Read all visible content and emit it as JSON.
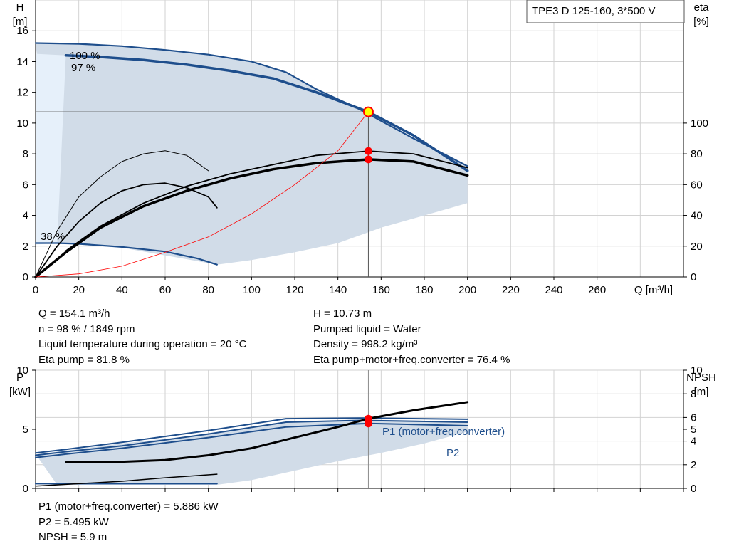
{
  "legend_box": "TPE3 D 125-160, 3*500 V",
  "chart_data": [
    {
      "type": "line",
      "title": "",
      "xlabel": "Q [m³/h]",
      "ylabel": "H\n[m]",
      "y2label": "eta\n[%]",
      "xlim": [
        0,
        300
      ],
      "ylim": [
        0,
        18
      ],
      "y2lim": [
        0,
        180
      ],
      "x_ticks": [
        0,
        20,
        40,
        60,
        80,
        100,
        120,
        140,
        160,
        180,
        200,
        220,
        240,
        260
      ],
      "y_ticks": [
        0,
        2,
        4,
        6,
        8,
        10,
        12,
        14,
        16
      ],
      "y2_ticks": [
        0,
        20,
        40,
        60,
        80,
        100
      ],
      "grid": true,
      "curve_labels": [
        "100 %",
        "97 %",
        "38 %"
      ],
      "operating_region": {
        "upper": [
          [
            0,
            15.2
          ],
          [
            40,
            15.0
          ],
          [
            80,
            14.5
          ],
          [
            100,
            14.0
          ],
          [
            116,
            13.3
          ],
          [
            130,
            12.2
          ],
          [
            150,
            11.0
          ],
          [
            175,
            9.0
          ],
          [
            200,
            7.2
          ]
        ],
        "lower": [
          [
            200,
            4.8
          ],
          [
            180,
            4.0
          ],
          [
            160,
            3.2
          ],
          [
            140,
            2.2
          ],
          [
            120,
            1.6
          ],
          [
            100,
            1.1
          ],
          [
            84,
            0.8
          ],
          [
            60,
            1.4
          ],
          [
            40,
            1.9
          ],
          [
            20,
            2.1
          ],
          [
            10,
            2.2
          ]
        ],
        "color": "#d1dce8"
      },
      "series": [
        {
          "name": "",
          "kind": "H",
          "color": "#1e4e8c",
          "width": 2.2,
          "x": [
            0,
            20,
            40,
            60,
            80,
            100,
            116,
            130,
            150,
            175,
            200
          ],
          "y": [
            15.2,
            15.15,
            15.0,
            14.75,
            14.45,
            14.0,
            13.3,
            12.2,
            10.9,
            9.0,
            7.2
          ]
        },
        {
          "name": "",
          "kind": "H",
          "color": "#1e4e8c",
          "width": 3.5,
          "x": [
            14,
            30,
            50,
            70,
            90,
            110,
            130,
            154.1,
            175,
            200
          ],
          "y": [
            14.4,
            14.3,
            14.1,
            13.8,
            13.4,
            12.9,
            12.0,
            10.73,
            9.2,
            6.9
          ]
        },
        {
          "name": "",
          "kind": "H",
          "color": "#1e4e8c",
          "width": 2.2,
          "x": [
            0,
            10,
            20,
            40,
            60,
            75,
            84
          ],
          "y": [
            2.2,
            2.2,
            2.15,
            1.95,
            1.65,
            1.2,
            0.8
          ]
        },
        {
          "name": "",
          "kind": "eta",
          "color": "#000000",
          "width": 1.0,
          "x": [
            0,
            10,
            20,
            30,
            40,
            50,
            60,
            70,
            80
          ],
          "y": [
            0,
            30,
            52,
            65,
            75,
            80,
            82,
            79,
            69
          ]
        },
        {
          "name": "",
          "kind": "eta",
          "color": "#000000",
          "width": 1.8,
          "x": [
            0,
            10,
            20,
            30,
            40,
            50,
            60,
            70,
            80,
            84
          ],
          "y": [
            0,
            20,
            36,
            48,
            56,
            60,
            61,
            58,
            52,
            45
          ]
        },
        {
          "name": "",
          "kind": "eta",
          "color": "#000000",
          "width": 1.8,
          "x": [
            14,
            30,
            50,
            70,
            90,
            110,
            130,
            154.1,
            175,
            200
          ],
          "y": [
            17,
            33,
            48,
            59,
            67,
            73,
            79,
            81.8,
            80,
            71
          ]
        },
        {
          "name": "",
          "kind": "eta",
          "color": "#000000",
          "width": 3.5,
          "x": [
            0,
            14,
            30,
            50,
            70,
            90,
            110,
            130,
            154.1,
            175,
            200
          ],
          "y": [
            0,
            16,
            32,
            46,
            56,
            64,
            70,
            74,
            76.4,
            75,
            66
          ]
        },
        {
          "name": "",
          "kind": "H",
          "color": "#ff0000",
          "width": 0.8,
          "x": [
            0,
            20,
            40,
            60,
            80,
            100,
            120,
            140,
            154.1
          ],
          "y": [
            0,
            0.2,
            0.7,
            1.6,
            2.6,
            4.1,
            6.0,
            8.2,
            10.73
          ]
        }
      ],
      "operating_point": {
        "q": 154.1,
        "h": 10.73,
        "eta_points": [
          81.8,
          76.4
        ]
      }
    },
    {
      "type": "line",
      "title": "",
      "xlabel": "",
      "ylabel": "P\n[kW]",
      "y2label": "NPSH\n[m]",
      "xlim": [
        0,
        300
      ],
      "ylim": [
        0,
        10
      ],
      "y2lim": [
        0,
        10
      ],
      "y_ticks": [
        0,
        5,
        10
      ],
      "y2_ticks": [
        0,
        2,
        4,
        5,
        6,
        8,
        10
      ],
      "grid": true,
      "series_labels": [
        "P1 (motor+freq.converter)",
        "P2"
      ],
      "operating_region": {
        "upper": [
          [
            0,
            2.9
          ],
          [
            14,
            3.2
          ],
          [
            40,
            3.8
          ],
          [
            80,
            4.6
          ],
          [
            116,
            5.6
          ],
          [
            150,
            5.8
          ],
          [
            175,
            5.75
          ],
          [
            200,
            5.6
          ]
        ],
        "lower": [
          [
            200,
            4.8
          ],
          [
            180,
            3.8
          ],
          [
            160,
            3.0
          ],
          [
            140,
            2.3
          ],
          [
            120,
            1.5
          ],
          [
            100,
            0.7
          ],
          [
            84,
            0.3
          ],
          [
            40,
            0.3
          ],
          [
            10,
            0.3
          ]
        ],
        "color": "#d1dce8"
      },
      "series": [
        {
          "name": "P1 (motor+freq.converter)",
          "kind": "P",
          "color": "#1e4e8c",
          "width": 2.0,
          "x": [
            0,
            14,
            40,
            80,
            116,
            150,
            200
          ],
          "y": [
            3.0,
            3.3,
            3.9,
            4.9,
            5.9,
            5.95,
            5.85
          ]
        },
        {
          "name": "",
          "kind": "P",
          "color": "#1e4e8c",
          "width": 2.0,
          "x": [
            0,
            14,
            40,
            80,
            116,
            150,
            200
          ],
          "y": [
            2.8,
            3.1,
            3.6,
            4.6,
            5.6,
            5.75,
            5.6
          ]
        },
        {
          "name": "P2",
          "kind": "P",
          "color": "#1e4e8c",
          "width": 2.0,
          "x": [
            0,
            14,
            40,
            80,
            116,
            154.1,
            200
          ],
          "y": [
            2.6,
            2.9,
            3.4,
            4.3,
            5.2,
            5.495,
            5.3
          ]
        },
        {
          "name": "",
          "kind": "P",
          "color": "#1e4e8c",
          "width": 2.0,
          "x": [
            0,
            20,
            40,
            60,
            84
          ],
          "y": [
            0.4,
            0.4,
            0.4,
            0.4,
            0.4
          ]
        },
        {
          "name": "",
          "kind": "P",
          "color": "#000000",
          "width": 1.5,
          "x": [
            0,
            20,
            40,
            60,
            84
          ],
          "y": [
            0.2,
            0.4,
            0.6,
            0.9,
            1.2
          ]
        },
        {
          "name": "",
          "kind": "NPSH",
          "color": "#000000",
          "width": 3.0,
          "x": [
            14,
            40,
            60,
            80,
            100,
            120,
            140,
            154.1,
            175,
            200
          ],
          "y": [
            2.2,
            2.25,
            2.4,
            2.8,
            3.4,
            4.3,
            5.2,
            5.9,
            6.6,
            7.3
          ]
        }
      ],
      "operating_point": {
        "q": 154.1,
        "p_values": [
          5.886,
          5.495
        ]
      }
    }
  ],
  "readout_upper": {
    "left": [
      "Q = 154.1 m³/h",
      "n = 98 % / 1849 rpm",
      "Liquid temperature during operation = 20 °C",
      "Eta pump = 81.8 %"
    ],
    "right": [
      "H = 10.73 m",
      "Pumped liquid = Water",
      "Density = 998.2 kg/m³",
      "Eta pump+motor+freq.converter = 76.4 %"
    ]
  },
  "readout_lower": [
    "P1 (motor+freq.converter) = 5.886 kW",
    "P2 = 5.495 kW",
    "NPSH = 5.9 m"
  ],
  "colors": {
    "pump_curve": "#1e4e8c",
    "region_fill": "#d1dce8",
    "system_curve": "#ff0000",
    "grid": "#d0d0d0",
    "op_point_fill": "#ffff00"
  }
}
